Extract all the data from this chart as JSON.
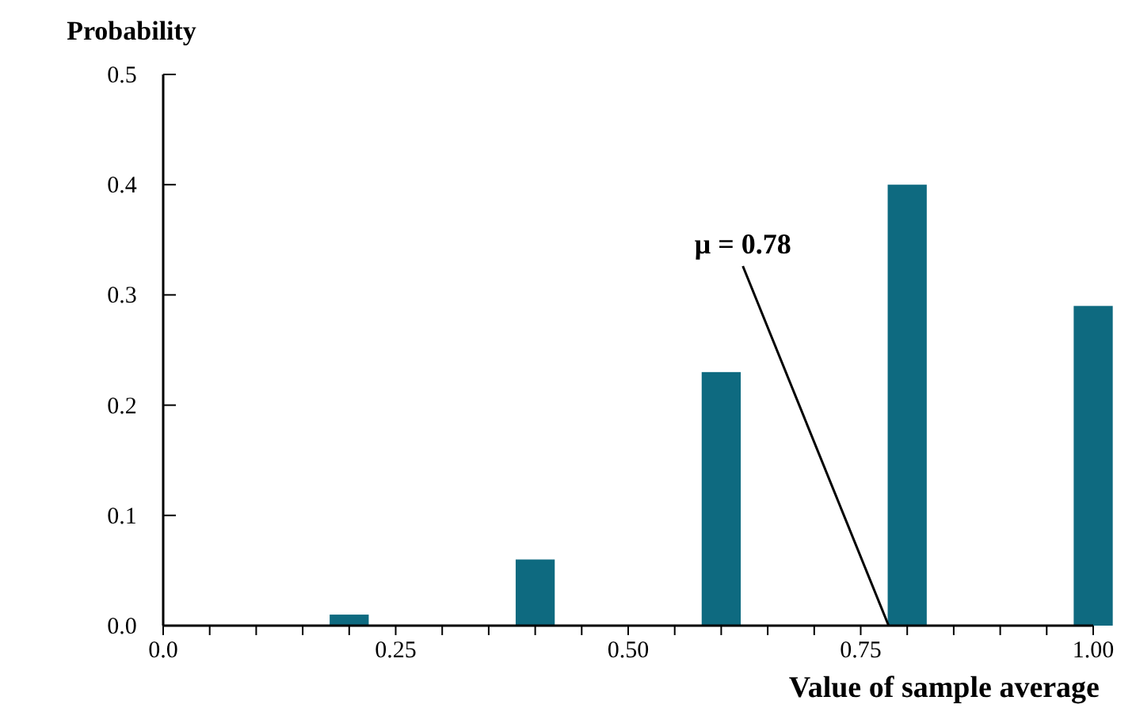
{
  "chart_data": {
    "type": "bar",
    "ylabel": "Probability",
    "xlabel": "Value of sample average",
    "x": [
      0.2,
      0.4,
      0.6,
      0.8,
      1.0
    ],
    "values": [
      0.01,
      0.06,
      0.23,
      0.4,
      0.29
    ],
    "color": "#0e6a80",
    "xlim": [
      0,
      1
    ],
    "xticks": [
      {
        "value": 0,
        "label": "0.0"
      },
      {
        "value": 0.05,
        "label": null
      },
      {
        "value": 0.1,
        "label": null
      },
      {
        "value": 0.15,
        "label": null
      },
      {
        "value": 0.2,
        "label": null
      },
      0.25,
      {
        "value": 0.3,
        "label": null
      },
      {
        "value": 0.35,
        "label": null
      },
      {
        "value": 0.4,
        "label": null
      },
      {
        "value": 0.45,
        "label": null
      },
      {
        "value": 0.5,
        "label": "0.50"
      },
      {
        "value": 0.55,
        "label": null
      },
      {
        "value": 0.6,
        "label": null
      },
      {
        "value": 0.65,
        "label": null
      },
      {
        "value": 0.7,
        "label": null
      },
      0.75,
      {
        "value": 0.8,
        "label": null
      },
      {
        "value": 0.85,
        "label": null
      },
      {
        "value": 0.9,
        "label": null
      },
      {
        "value": 0.95,
        "label": null
      },
      {
        "value": 1,
        "label": "1.00"
      }
    ],
    "ylim": [
      0,
      0.5
    ],
    "yticks": [
      {
        "value": 0,
        "label": "0.0"
      },
      0.1,
      0.2,
      0.3,
      0.4,
      0.5
    ],
    "annotations": [
      {
        "text": "μ = 0.78",
        "x": 0.78,
        "y": 0
      }
    ]
  }
}
